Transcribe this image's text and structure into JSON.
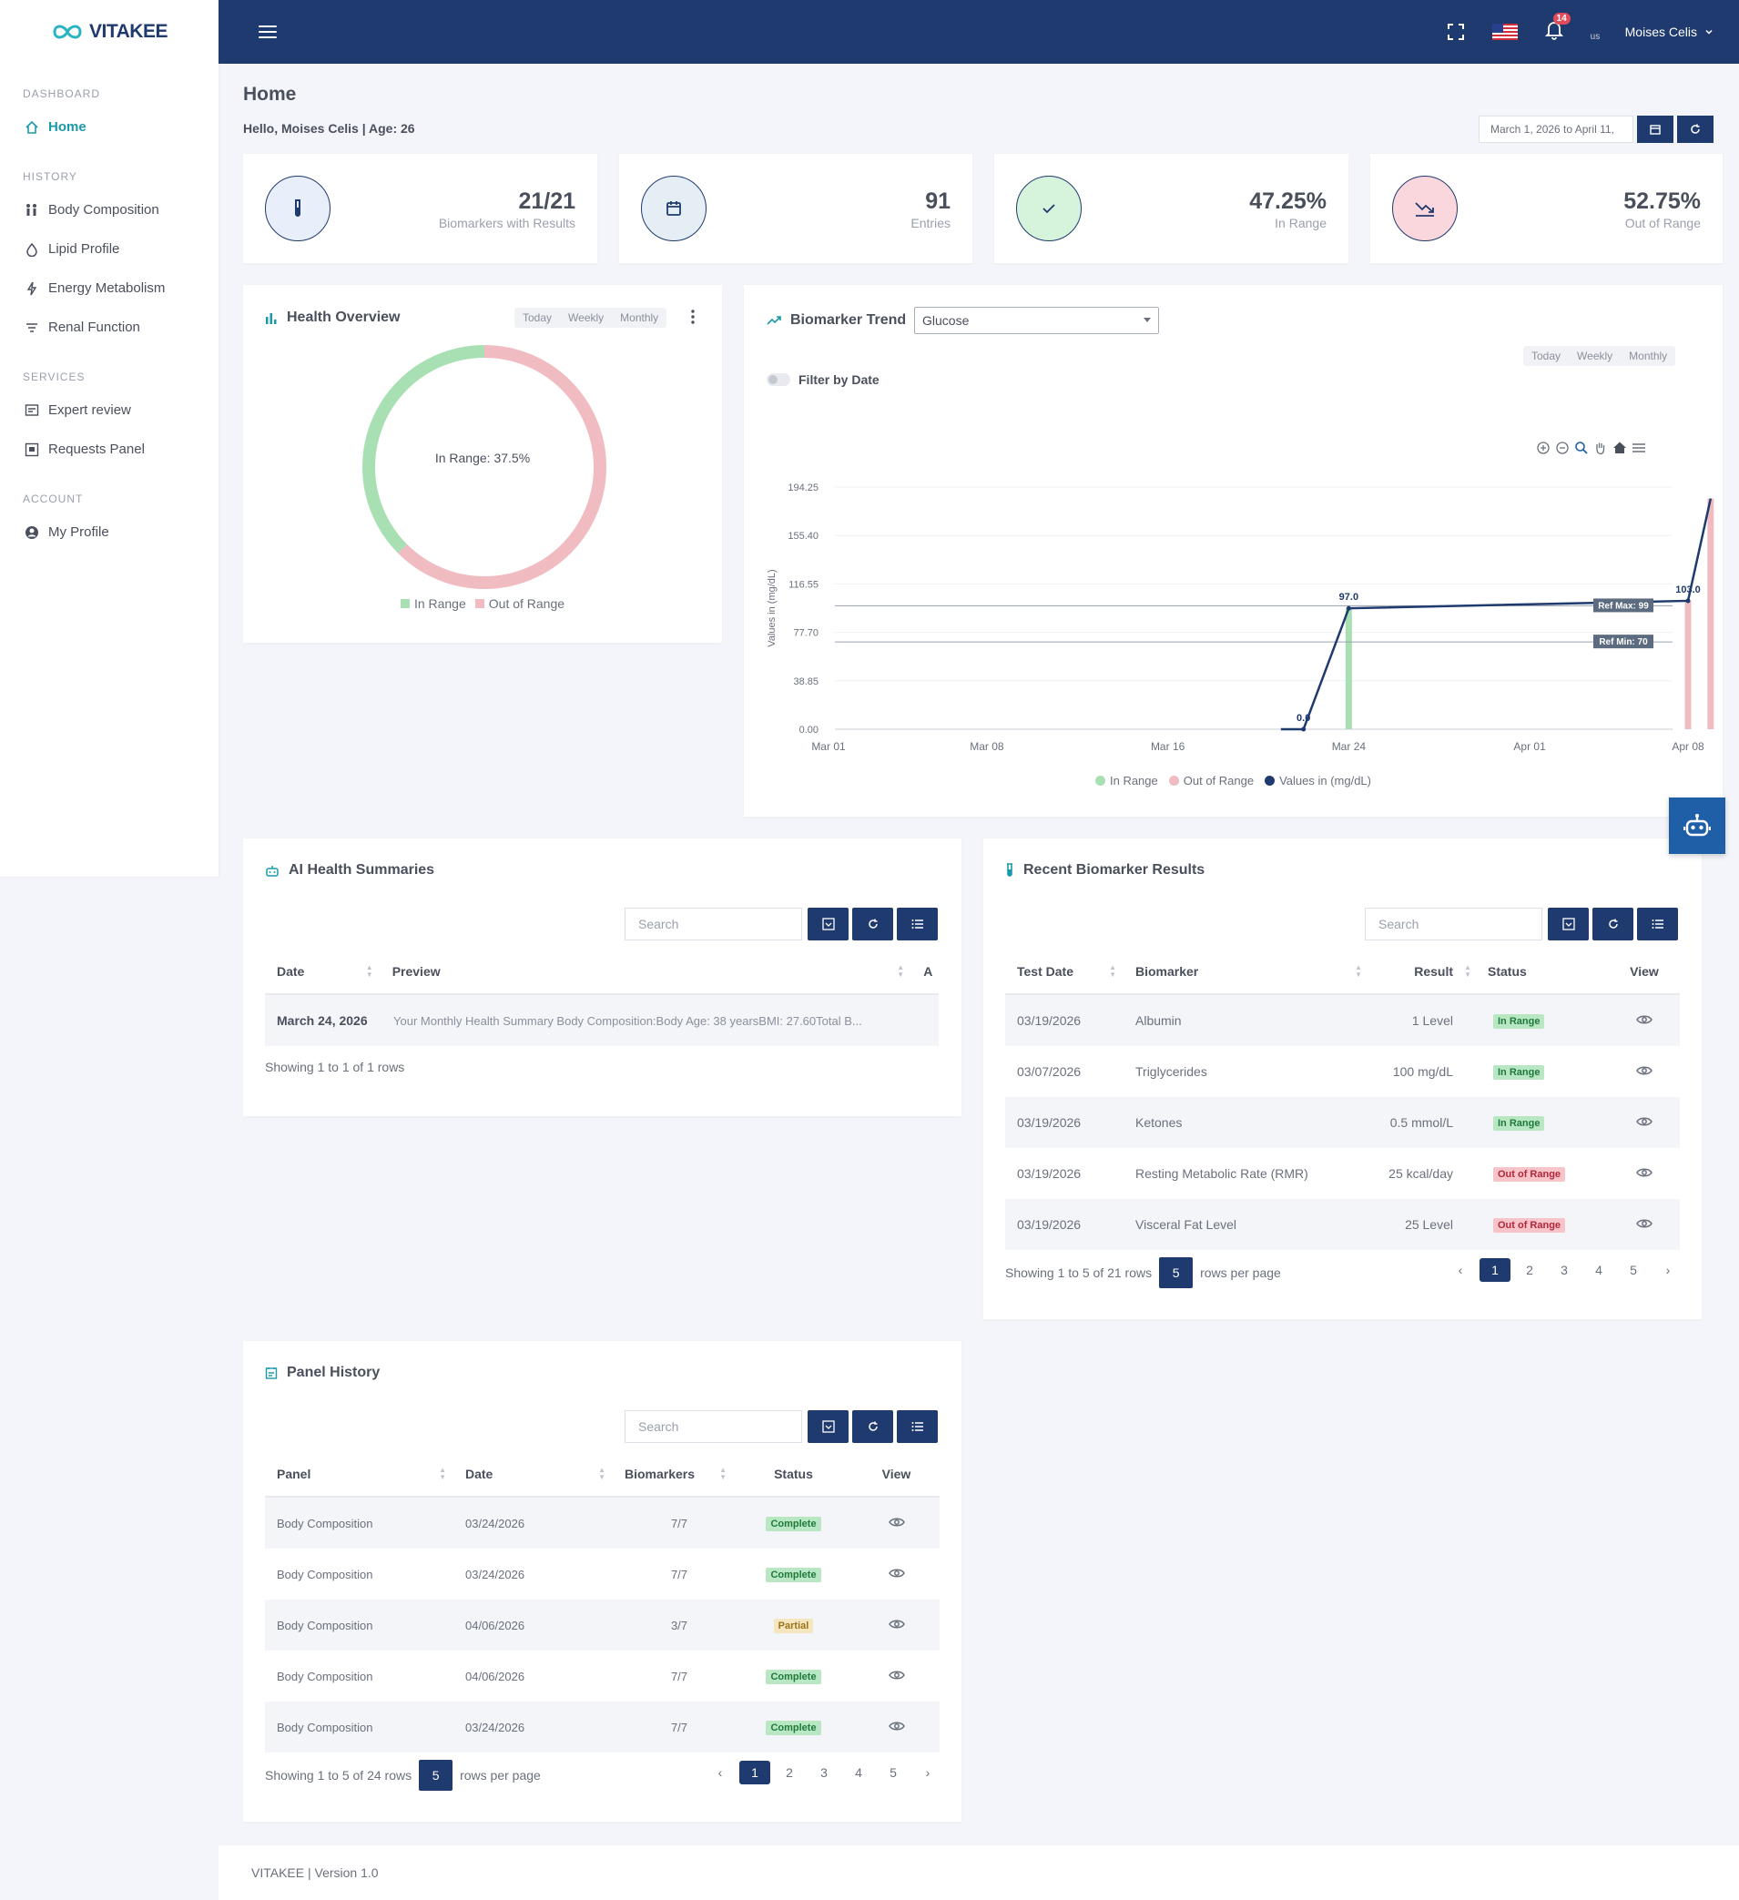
{
  "app": {
    "name": "VITAKEE"
  },
  "sidebar": {
    "sections": [
      {
        "title": "DASHBOARD",
        "items": [
          {
            "label": "Home",
            "icon": "home-icon"
          }
        ]
      },
      {
        "title": "HISTORY",
        "items": [
          {
            "label": "Body Composition"
          },
          {
            "label": "Lipid Profile"
          },
          {
            "label": "Energy Metabolism"
          },
          {
            "label": "Renal Function"
          }
        ]
      },
      {
        "title": "SERVICES",
        "items": [
          {
            "label": "Expert review"
          },
          {
            "label": "Requests Panel"
          }
        ]
      },
      {
        "title": "ACCOUNT",
        "items": [
          {
            "label": "My Profile"
          }
        ]
      }
    ]
  },
  "topbar": {
    "notifications": "14",
    "avatar_alt": "us",
    "user_name": "Moises Celis"
  },
  "page": {
    "title": "Home",
    "greeting": "Hello, Moises Celis | Age: 26",
    "date_range": "March 1, 2026 to April 11,"
  },
  "stats": [
    {
      "value": "21/21",
      "label": "Biomarkers with Results"
    },
    {
      "value": "91",
      "label": "Entries"
    },
    {
      "value": "47.25%",
      "label": "In Range"
    },
    {
      "value": "52.75%",
      "label": "Out of Range"
    }
  ],
  "health_overview": {
    "title": "Health Overview",
    "periods": [
      "Today",
      "Weekly",
      "Monthly"
    ],
    "center_label": "In Range: 37.5%",
    "legend": [
      "In Range",
      "Out of Range"
    ]
  },
  "biomarker_trend": {
    "title": "Biomarker Trend",
    "selected": "Glucose",
    "periods": [
      "Today",
      "Weekly",
      "Monthly"
    ],
    "filter_label": "Filter by Date",
    "ref_max_label": "Ref Max: 99",
    "ref_min_label": "Ref Min: 70",
    "legend": [
      "In Range",
      "Out of Range",
      "Values in (mg/dL)"
    ]
  },
  "chart_data": {
    "type": "line",
    "ylabel": "Values in (mg/dL)",
    "ylim": [
      0,
      194.25
    ],
    "y_ticks": [
      "194.25",
      "155.40",
      "116.55",
      "77.70",
      "38.85",
      "0.00"
    ],
    "x_ticks": [
      "Mar 01",
      "Mar 08",
      "Mar 16",
      "Mar 24",
      "Apr 01",
      "Apr 08"
    ],
    "ref_max": 99,
    "ref_min": 70,
    "series": [
      {
        "name": "Values in (mg/dL)",
        "points": [
          [
            "2026-03-21",
            0
          ],
          [
            "2026-03-22",
            0.0
          ],
          [
            "2026-03-24",
            97.0
          ],
          [
            "2026-04-08",
            103.0
          ],
          [
            "2026-04-09",
            185
          ]
        ]
      }
    ],
    "bars": [
      {
        "date": "2026-03-24",
        "value": 97,
        "status": "In Range"
      },
      {
        "date": "2026-04-08",
        "value": 103,
        "status": "Out of Range"
      },
      {
        "date": "2026-04-09",
        "value": 185,
        "status": "Out of Range"
      }
    ],
    "data_labels": [
      {
        "date": "2026-03-22",
        "value": 0.0,
        "text": "0.0"
      },
      {
        "date": "2026-03-24",
        "value": 97.0,
        "text": "97.0"
      },
      {
        "date": "2026-04-08",
        "value": 103.0,
        "text": "103.0"
      }
    ]
  },
  "ai_summaries": {
    "title": "AI Health Summaries",
    "search_placeholder": "Search",
    "columns": [
      "Date",
      "Preview",
      "A"
    ],
    "rows": [
      {
        "date": "March 24, 2026",
        "preview": "Your Monthly Health Summary Body Composition:Body Age: 38 yearsBMI: 27.60Total B..."
      }
    ],
    "footer": "Showing 1 to 1 of 1 rows"
  },
  "recent_results": {
    "title": "Recent Biomarker Results",
    "search_placeholder": "Search",
    "columns": [
      "Test Date",
      "Biomarker",
      "Result",
      "Status",
      "View"
    ],
    "rows": [
      {
        "date": "03/19/2026",
        "biomarker": "Albumin",
        "result": "1 Level",
        "status": "In Range"
      },
      {
        "date": "03/07/2026",
        "biomarker": "Triglycerides",
        "result": "100 mg/dL",
        "status": "In Range"
      },
      {
        "date": "03/19/2026",
        "biomarker": "Ketones",
        "result": "0.5 mmol/L",
        "status": "In Range"
      },
      {
        "date": "03/19/2026",
        "biomarker": "Resting Metabolic Rate (RMR)",
        "result": "25 kcal/day",
        "status": "Out of Range"
      },
      {
        "date": "03/19/2026",
        "biomarker": "Visceral Fat Level",
        "result": "25 Level",
        "status": "Out of Range"
      }
    ],
    "footer": "Showing 1 to 5 of 21 rows",
    "page_size": "5",
    "rows_per_page": "rows per page",
    "pages": [
      "‹",
      "1",
      "2",
      "3",
      "4",
      "5",
      "›"
    ]
  },
  "panel_history": {
    "title": "Panel History",
    "search_placeholder": "Search",
    "columns": [
      "Panel",
      "Date",
      "Biomarkers",
      "Status",
      "View"
    ],
    "rows": [
      {
        "panel": "Body Composition",
        "date": "03/24/2026",
        "biomarkers": "7/7",
        "status": "Complete"
      },
      {
        "panel": "Body Composition",
        "date": "03/24/2026",
        "biomarkers": "7/7",
        "status": "Complete"
      },
      {
        "panel": "Body Composition",
        "date": "04/06/2026",
        "biomarkers": "3/7",
        "status": "Partial"
      },
      {
        "panel": "Body Composition",
        "date": "04/06/2026",
        "biomarkers": "7/7",
        "status": "Complete"
      },
      {
        "panel": "Body Composition",
        "date": "03/24/2026",
        "biomarkers": "7/7",
        "status": "Complete"
      }
    ],
    "footer": "Showing 1 to 5 of 24 rows",
    "page_size": "5",
    "rows_per_page": "rows per page",
    "pages": [
      "‹",
      "1",
      "2",
      "3",
      "4",
      "5",
      "›"
    ]
  },
  "footer": {
    "text": "VITAKEE | Version 1.0"
  },
  "colors": {
    "primary": "#1f3a6e",
    "accent": "#1a9aa8",
    "in_range": "#a8e0b3",
    "out_of_range": "#f0bcc1"
  }
}
